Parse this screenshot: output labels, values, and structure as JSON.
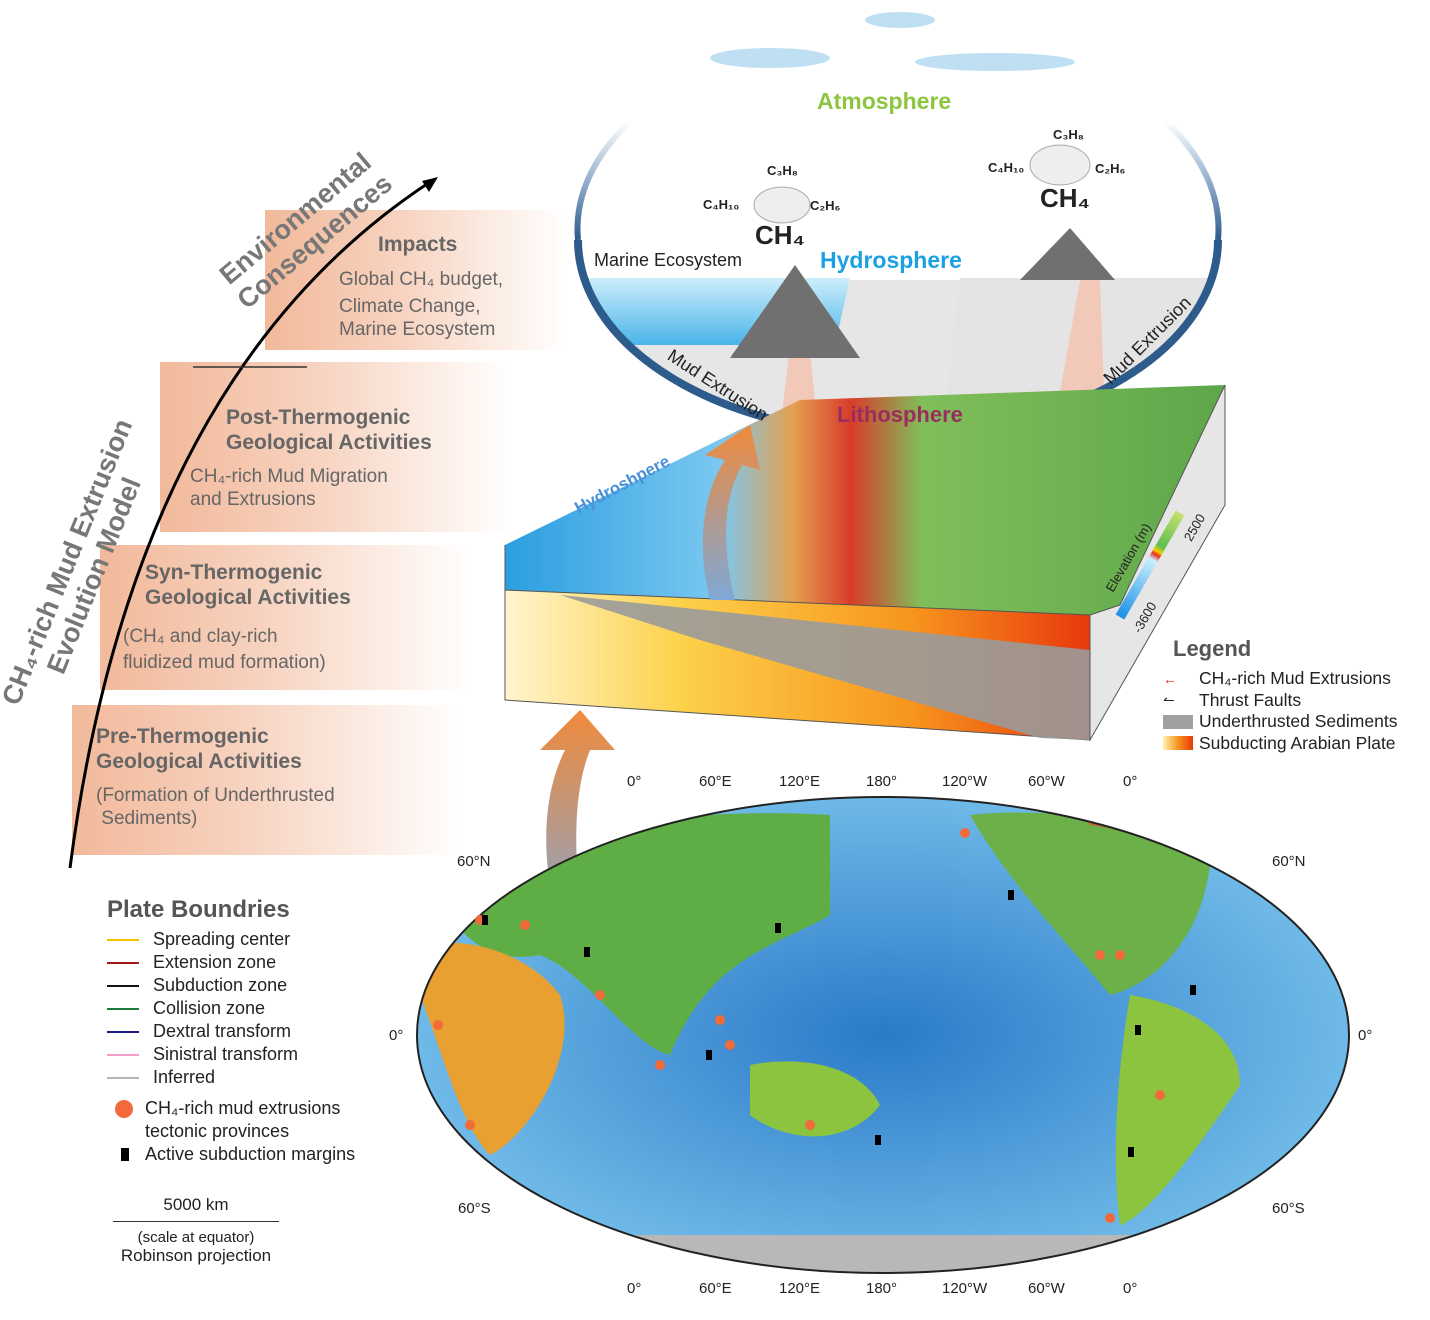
{
  "evolution_model": {
    "axis_title": "CH₄-rich Mud Extrusion Evolution Model",
    "axis_title_line1": "CH₄-rich Mud Extrusion",
    "axis_title_line2": "Evolution Model",
    "consequence_line1": "Environmental",
    "consequence_line2": "Consequences",
    "stages": [
      {
        "title1": "Impacts",
        "title2": "",
        "desc1": "Global CH₄ budget,",
        "desc2": "Climate Change,",
        "desc3": "Marine Ecosystem"
      },
      {
        "title1": "Post-Thermogenic",
        "title2": "Geological Activities",
        "desc1": "CH₄-rich Mud Migration",
        "desc2": "and Extrusions"
      },
      {
        "title1": "Syn-Thermogenic",
        "title2": "Geological Activities",
        "desc1": "(CH₄ and clay-rich",
        "desc2": "fluidized mud formation)"
      },
      {
        "title1": "Pre-Thermogenic",
        "title2": "Geological Activities",
        "desc1": "(Formation of Underthrusted",
        "desc2": " Sediments)"
      }
    ]
  },
  "sphere_diagram": {
    "atmosphere": "Atmosphere",
    "hydrosphere": "Hydrosphere",
    "lithosphere": "Lithosphere",
    "marine_ecosystem": "Marine Ecosystem",
    "mud_extrusion": "Mud Extrusion",
    "gases": {
      "ch4": "CH₄",
      "c3h8": "C₃H₈",
      "c4h10": "C₄H₁₀",
      "c2h6": "C₂H₆"
    },
    "colors": {
      "atmosphere": "#8cc63f",
      "hydrosphere": "#1ba1e2",
      "lithosphere": "#9b2d5e"
    }
  },
  "block_diagram": {
    "hydrosphere_label": "Hydroshpere",
    "elevation": {
      "title": "Elevation (m)",
      "min": "-3600",
      "max": "2500"
    }
  },
  "legend": {
    "title": "Legend",
    "items": [
      "CH₄-rich Mud Extrusions",
      "Thrust Faults",
      "Underthrusted Sediments",
      "Subducting Arabian Plate"
    ]
  },
  "map": {
    "top_ticks": [
      "0°",
      "60°E",
      "120°E",
      "180°",
      "120°W",
      "60°W",
      "0°"
    ],
    "bottom_ticks": [
      "0°",
      "60°E",
      "120°E",
      "180°",
      "120°W",
      "60°W",
      "0°"
    ],
    "left_ticks": [
      "60°N",
      "0°",
      "60°S"
    ],
    "right_ticks": [
      "60°N",
      "0°",
      "60°S"
    ],
    "plate_boundaries": {
      "title": "Plate Boundries",
      "items": [
        {
          "label": "Spreading center",
          "color": "#f5c400"
        },
        {
          "label": "Extension zone",
          "color": "#a01818"
        },
        {
          "label": "Subduction zone",
          "color": "#111111"
        },
        {
          "label": "Collision zone",
          "color": "#1d7a3a"
        },
        {
          "label": "Dextral transform",
          "color": "#1a1a8a"
        },
        {
          "label": "Sinistral transform",
          "color": "#f0a0c8"
        },
        {
          "label": "Inferred",
          "color": "#b5b5b5"
        }
      ],
      "mud_provinces_1": "CH₄-rich mud extrusions",
      "mud_provinces_2": "tectonic provinces",
      "active_margins": "Active subduction margins",
      "scale": "5000 km",
      "scale_note": "(scale at equator)",
      "projection": "Robinson projection"
    }
  }
}
